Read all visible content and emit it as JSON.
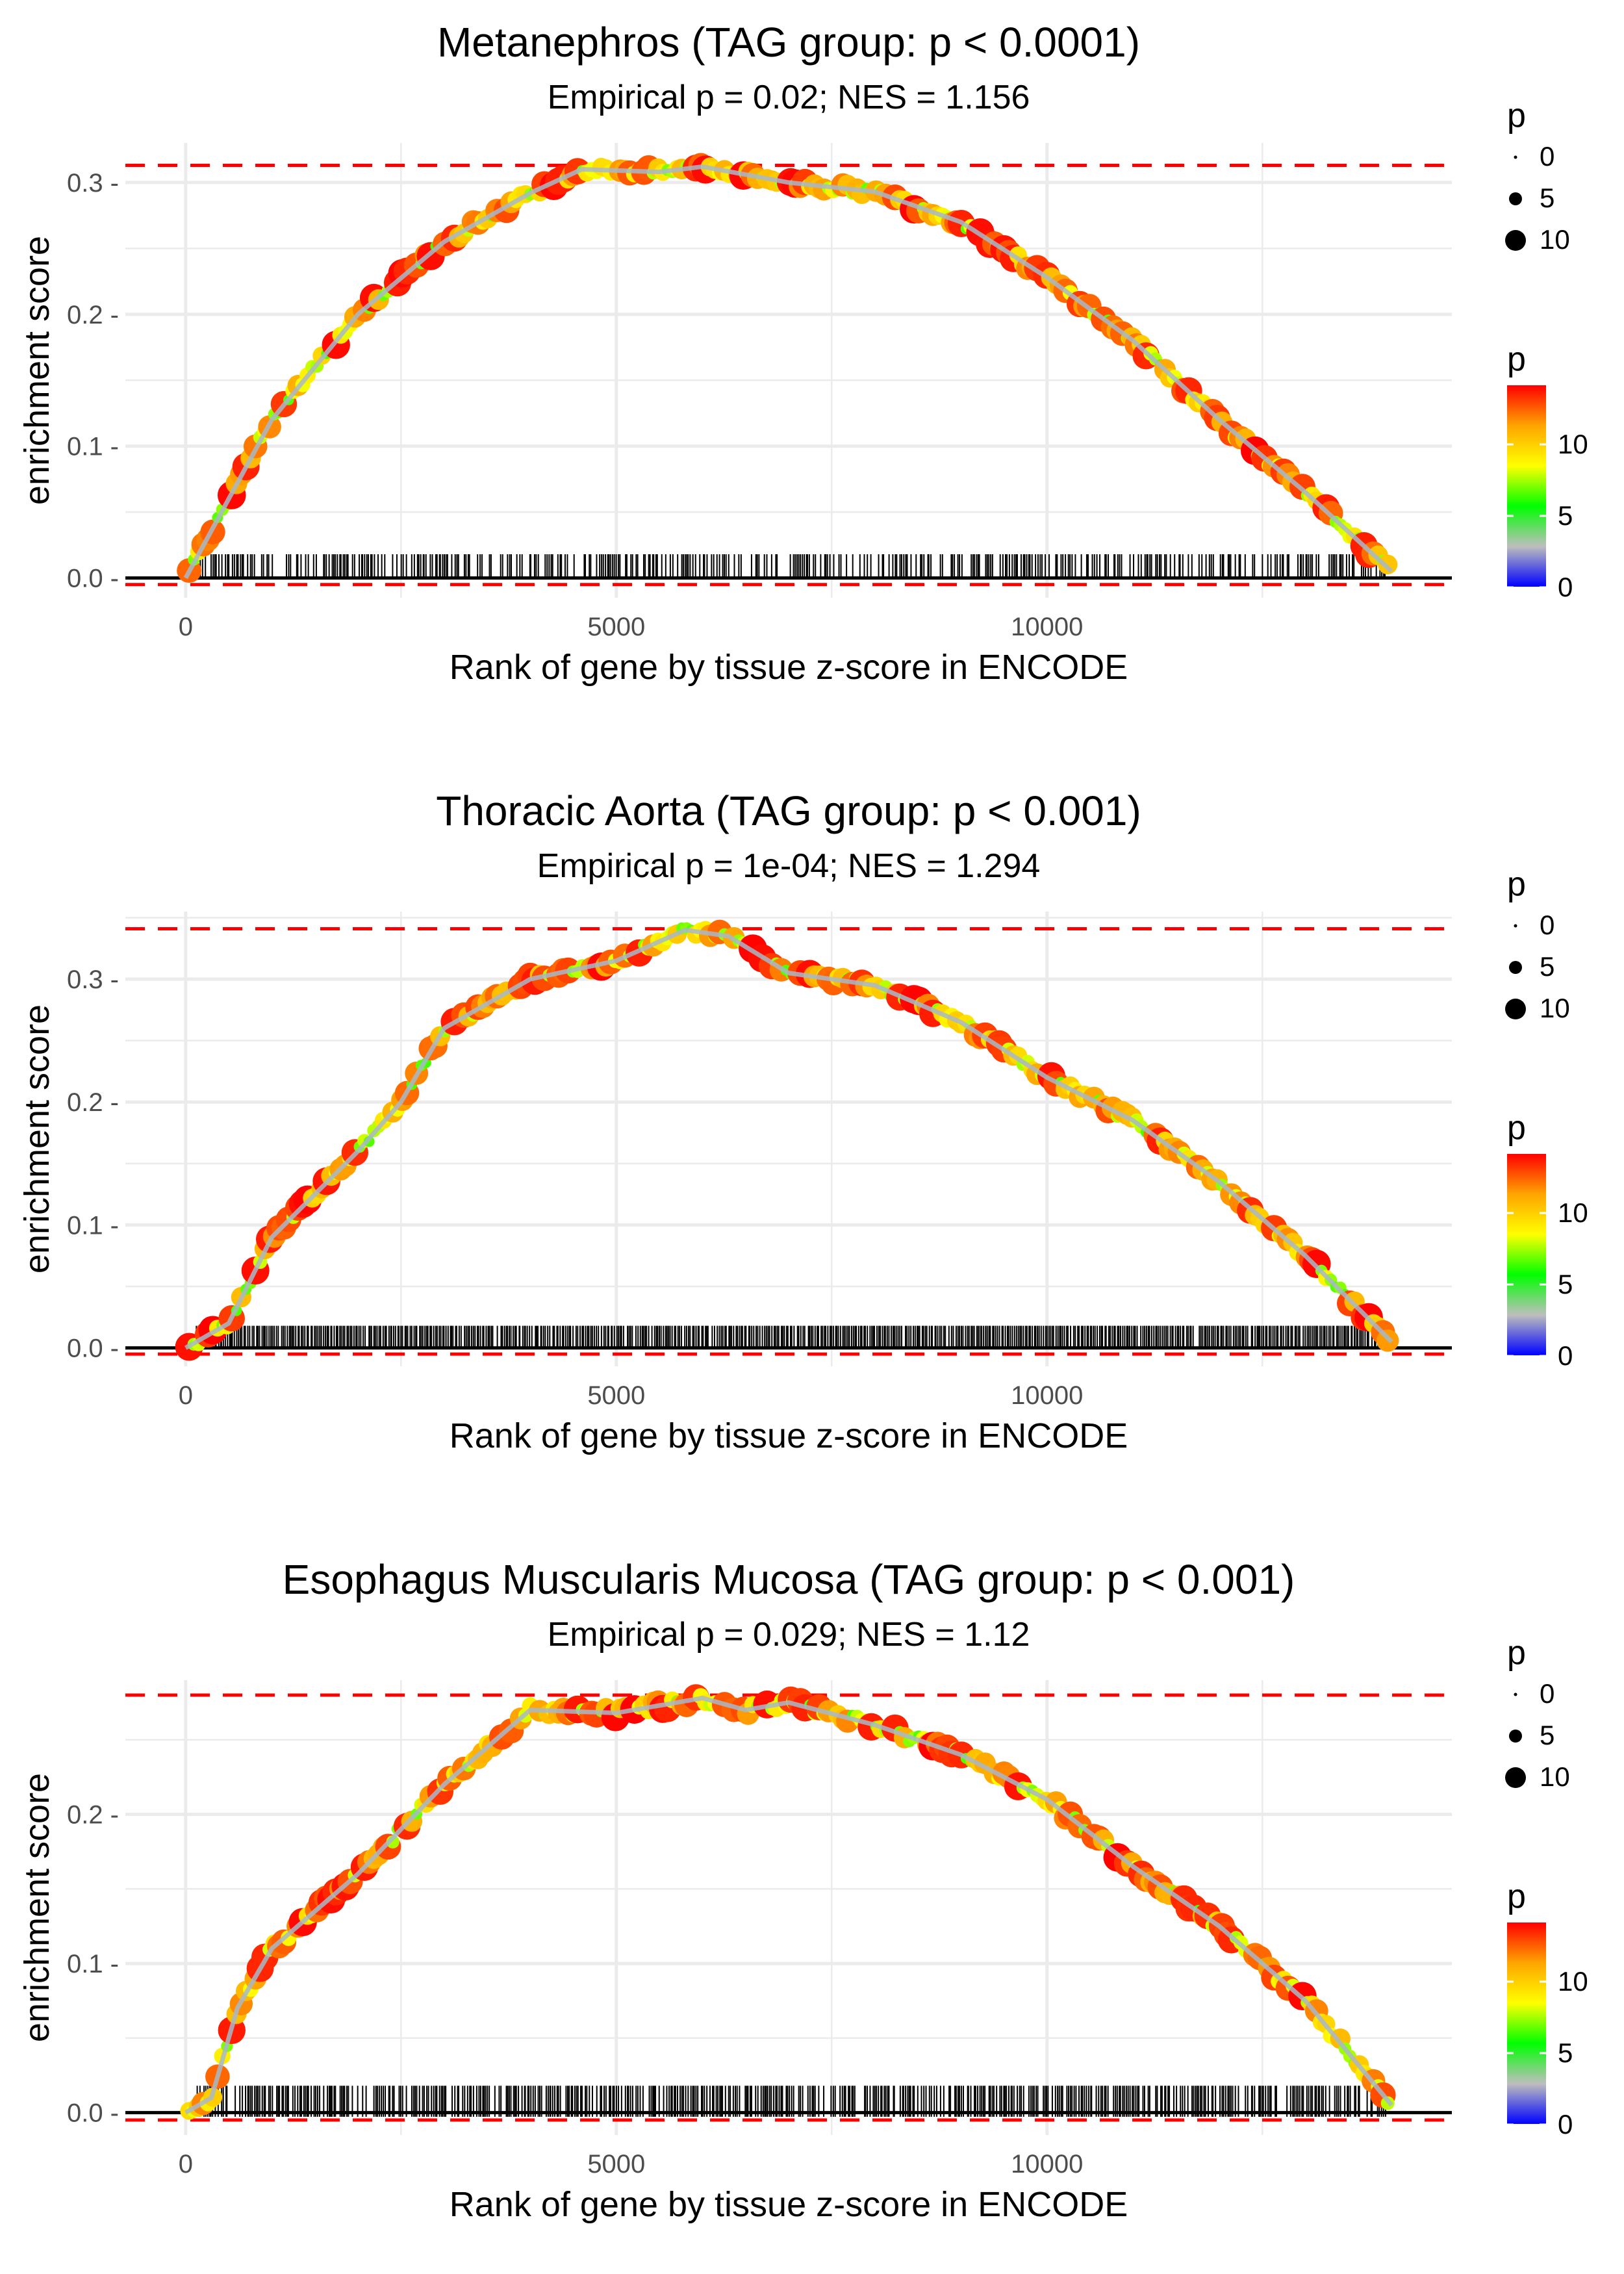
{
  "chart_data": [
    {
      "type": "scatter",
      "title": "Metanephros (TAG group: p < 0.0001)",
      "subtitle": "Empirical p = 0.02; NES = 1.156",
      "xlabel": "Rank of gene by tissue z-score in ENCODE",
      "ylabel": "enrichment score",
      "xlim": [
        -700,
        14700
      ],
      "ylim": [
        -0.015,
        0.33
      ],
      "x_ticks": [
        0,
        5000,
        10000
      ],
      "x_tick_labels": [
        "0",
        "5000",
        "10000"
      ],
      "y_ticks": [
        0.0,
        0.1,
        0.2,
        0.3
      ],
      "y_tick_labels": [
        "0.0 -",
        "0.1 -",
        "0.2 -",
        "0.3 -"
      ],
      "max_es_line": 0.313,
      "min_es_line": -0.005,
      "x_max": 14000,
      "rug_density": 0.58,
      "curve": [
        [
          0,
          0
        ],
        [
          500,
          0.06
        ],
        [
          1000,
          0.12
        ],
        [
          2000,
          0.2
        ],
        [
          3000,
          0.255
        ],
        [
          4000,
          0.292
        ],
        [
          4600,
          0.31
        ],
        [
          5500,
          0.308
        ],
        [
          6000,
          0.312
        ],
        [
          7000,
          0.3
        ],
        [
          8000,
          0.293
        ],
        [
          9000,
          0.27
        ],
        [
          10000,
          0.228
        ],
        [
          11000,
          0.18
        ],
        [
          12000,
          0.12
        ],
        [
          13000,
          0.065
        ],
        [
          14000,
          0.005
        ]
      ],
      "legend_size": {
        "title": "p",
        "entries": [
          "0",
          "5",
          "10"
        ]
      },
      "legend_color": {
        "title": "p",
        "entries": [
          "10",
          "5",
          "0"
        ]
      }
    },
    {
      "type": "scatter",
      "title": "Thoracic Aorta (TAG group: p < 0.001)",
      "subtitle": "Empirical p = 1e-04; NES = 1.294",
      "xlabel": "Rank of gene by tissue z-score in ENCODE",
      "ylabel": "enrichment score",
      "xlim": [
        -700,
        14700
      ],
      "ylim": [
        -0.015,
        0.355
      ],
      "x_ticks": [
        0,
        5000,
        10000
      ],
      "x_tick_labels": [
        "0",
        "5000",
        "10000"
      ],
      "y_ticks": [
        0.0,
        0.1,
        0.2,
        0.3
      ],
      "y_tick_labels": [
        "0.0 -",
        "0.1 -",
        "0.2 -",
        "0.3 -"
      ],
      "max_es_line": 0.341,
      "min_es_line": -0.005,
      "x_max": 14000,
      "rug_density": 0.95,
      "curve": [
        [
          0,
          0
        ],
        [
          500,
          0.02
        ],
        [
          1000,
          0.09
        ],
        [
          2000,
          0.16
        ],
        [
          2500,
          0.2
        ],
        [
          3000,
          0.26
        ],
        [
          4000,
          0.3
        ],
        [
          5000,
          0.315
        ],
        [
          5800,
          0.34
        ],
        [
          6300,
          0.335
        ],
        [
          7000,
          0.305
        ],
        [
          8000,
          0.295
        ],
        [
          9000,
          0.265
        ],
        [
          10000,
          0.22
        ],
        [
          11000,
          0.185
        ],
        [
          12000,
          0.135
        ],
        [
          13000,
          0.075
        ],
        [
          14000,
          0.005
        ]
      ],
      "legend_size": {
        "title": "p",
        "entries": [
          "0",
          "5",
          "10"
        ]
      },
      "legend_color": {
        "title": "p",
        "entries": [
          "10",
          "5",
          "0"
        ]
      }
    },
    {
      "type": "scatter",
      "title": "Esophagus Muscularis Mucosa (TAG group: p < 0.001)",
      "subtitle": "Empirical p = 0.029; NES = 1.12",
      "xlabel": "Rank of gene by tissue z-score in ENCODE",
      "ylabel": "enrichment score",
      "xlim": [
        -700,
        14700
      ],
      "ylim": [
        -0.015,
        0.29
      ],
      "x_ticks": [
        0,
        5000,
        10000
      ],
      "x_tick_labels": [
        "0",
        "5000",
        "10000"
      ],
      "y_ticks": [
        0.0,
        0.1,
        0.2
      ],
      "y_tick_labels": [
        "0.0 -",
        "0.1 -",
        "0.2 -"
      ],
      "max_es_line": 0.28,
      "min_es_line": -0.005,
      "x_max": 14000,
      "rug_density": 0.75,
      "curve": [
        [
          0,
          0
        ],
        [
          300,
          0.01
        ],
        [
          600,
          0.07
        ],
        [
          1000,
          0.11
        ],
        [
          2000,
          0.16
        ],
        [
          3000,
          0.22
        ],
        [
          4000,
          0.27
        ],
        [
          5000,
          0.268
        ],
        [
          6000,
          0.278
        ],
        [
          6500,
          0.27
        ],
        [
          7000,
          0.275
        ],
        [
          8000,
          0.26
        ],
        [
          9000,
          0.24
        ],
        [
          10000,
          0.21
        ],
        [
          11000,
          0.165
        ],
        [
          12000,
          0.125
        ],
        [
          13000,
          0.075
        ],
        [
          14000,
          0.005
        ]
      ],
      "legend_size": {
        "title": "p",
        "entries": [
          "0",
          "5",
          "10"
        ]
      },
      "legend_color": {
        "title": "p",
        "entries": [
          "10",
          "5",
          "0"
        ]
      }
    }
  ],
  "colors": {
    "dashed_line": "#ff0000",
    "gridline": "#ebebeb",
    "axis_text": "#4d4d4d",
    "curve": "#a8b8c8",
    "gradient": [
      "#0000ff",
      "#bebebe",
      "#00ff00",
      "#ffff00",
      "#ffa500",
      "#ff0000"
    ]
  }
}
